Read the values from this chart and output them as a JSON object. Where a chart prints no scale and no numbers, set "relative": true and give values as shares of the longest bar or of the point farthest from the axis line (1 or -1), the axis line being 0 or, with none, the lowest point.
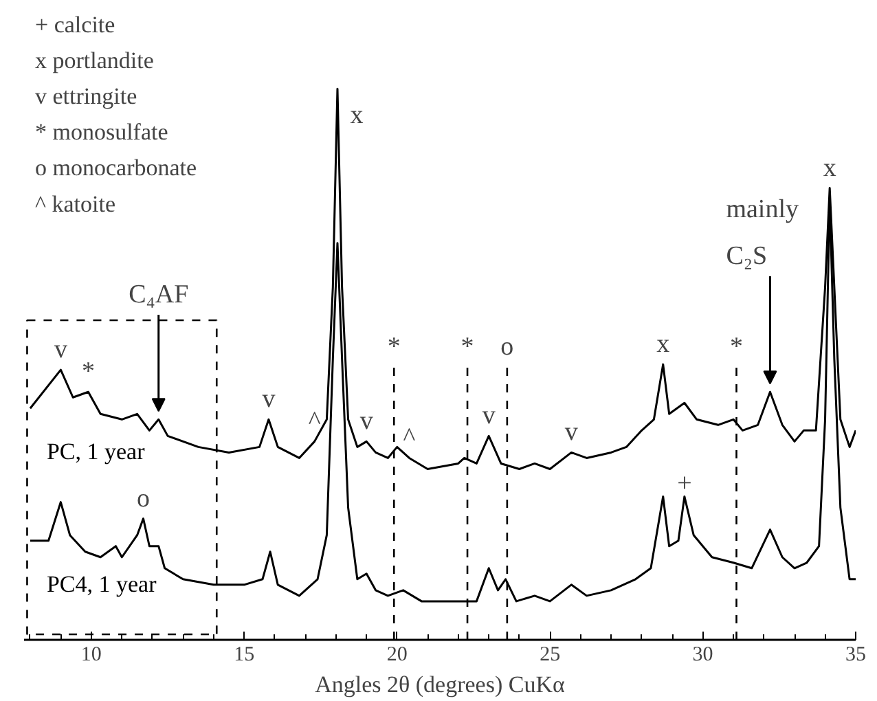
{
  "chart_data": {
    "type": "line",
    "relative": true,
    "xlabel": "Angles 2θ (degrees) CuKα",
    "xlim": [
      7.8,
      35
    ],
    "xticks": [
      {
        "value": 8,
        "label": null
      },
      {
        "value": 9,
        "label": null
      },
      10,
      {
        "value": 11,
        "label": null
      },
      {
        "value": 12,
        "label": null
      },
      {
        "value": 13,
        "label": null
      },
      {
        "value": 14,
        "label": null
      },
      15,
      {
        "value": 16,
        "label": null
      },
      {
        "value": 17,
        "label": null
      },
      {
        "value": 18,
        "label": null
      },
      {
        "value": 19,
        "label": null
      },
      20,
      {
        "value": 21,
        "label": null
      },
      {
        "value": 22,
        "label": null
      },
      {
        "value": 23,
        "label": null
      },
      {
        "value": 24,
        "label": null
      },
      25,
      {
        "value": 26,
        "label": null
      },
      {
        "value": 27,
        "label": null
      },
      {
        "value": 28,
        "label": null
      },
      {
        "value": 29,
        "label": null
      },
      30,
      {
        "value": 31,
        "label": null
      },
      {
        "value": 32,
        "label": null
      },
      {
        "value": 33,
        "label": null
      },
      {
        "value": 34,
        "label": null
      },
      35
    ],
    "grid": false,
    "line_style": "solid",
    "series": [
      {
        "name": "PC, 1 year",
        "color": "#000000",
        "x": [
          8,
          9.0,
          9.4,
          9.9,
          10.3,
          11,
          11.5,
          11.9,
          12.2,
          12.5,
          13.5,
          14.5,
          15.5,
          15.8,
          16.1,
          16.8,
          17.3,
          17.7,
          17.9,
          18.05,
          18.2,
          18.4,
          18.7,
          19.0,
          19.3,
          19.7,
          20.0,
          20.4,
          21,
          22,
          22.2,
          22.6,
          23.0,
          23.4,
          24,
          24.5,
          25,
          25.7,
          26.2,
          27,
          27.5,
          28.0,
          28.4,
          28.7,
          28.9,
          29.4,
          29.8,
          30.5,
          31.0,
          31.3,
          31.8,
          32.2,
          32.6,
          33.0,
          33.3,
          33.7,
          34.0,
          34.15,
          34.3,
          34.5,
          34.8,
          35.0
        ],
        "values": [
          0.42,
          0.49,
          0.44,
          0.45,
          0.41,
          0.4,
          0.41,
          0.38,
          0.4,
          0.37,
          0.35,
          0.34,
          0.35,
          0.4,
          0.35,
          0.33,
          0.36,
          0.4,
          0.64,
          1.0,
          0.64,
          0.4,
          0.35,
          0.36,
          0.34,
          0.33,
          0.35,
          0.33,
          0.31,
          0.32,
          0.33,
          0.32,
          0.37,
          0.32,
          0.31,
          0.32,
          0.31,
          0.34,
          0.33,
          0.34,
          0.35,
          0.38,
          0.4,
          0.5,
          0.41,
          0.43,
          0.4,
          0.39,
          0.4,
          0.38,
          0.39,
          0.45,
          0.39,
          0.36,
          0.38,
          0.38,
          0.64,
          0.82,
          0.64,
          0.4,
          0.35,
          0.38
        ]
      },
      {
        "name": "PC4, 1 year",
        "color": "#000000",
        "x": [
          8,
          8.6,
          9.0,
          9.3,
          9.8,
          10.3,
          10.8,
          11.0,
          11.5,
          11.7,
          11.9,
          12.2,
          12.4,
          13,
          14,
          15,
          15.6,
          15.85,
          16.1,
          16.8,
          17.4,
          17.7,
          17.9,
          18.05,
          18.2,
          18.4,
          18.7,
          19.0,
          19.3,
          19.7,
          20.2,
          20.8,
          22,
          22.6,
          23.0,
          23.3,
          23.55,
          23.9,
          24.5,
          25,
          25.7,
          26.2,
          27,
          27.8,
          28.3,
          28.7,
          28.9,
          29.2,
          29.4,
          29.7,
          30.3,
          31,
          31.6,
          32.2,
          32.6,
          33,
          33.4,
          33.8,
          34.0,
          34.15,
          34.3,
          34.5,
          34.8,
          35.0
        ],
        "values": [
          0.18,
          0.18,
          0.25,
          0.19,
          0.16,
          0.15,
          0.17,
          0.15,
          0.19,
          0.22,
          0.17,
          0.17,
          0.13,
          0.11,
          0.1,
          0.1,
          0.11,
          0.16,
          0.1,
          0.08,
          0.11,
          0.19,
          0.51,
          0.72,
          0.51,
          0.24,
          0.11,
          0.12,
          0.09,
          0.08,
          0.09,
          0.07,
          0.07,
          0.07,
          0.13,
          0.09,
          0.11,
          0.07,
          0.08,
          0.07,
          0.1,
          0.08,
          0.09,
          0.11,
          0.13,
          0.26,
          0.17,
          0.18,
          0.26,
          0.19,
          0.15,
          0.14,
          0.13,
          0.2,
          0.15,
          0.13,
          0.14,
          0.17,
          0.4,
          0.8,
          0.51,
          0.24,
          0.11,
          0.11
        ]
      }
    ],
    "ref_lines": [
      {
        "axis": "x",
        "value": 19.9,
        "label": "*",
        "line_style": "dashed"
      },
      {
        "axis": "x",
        "value": 22.3,
        "label": "*",
        "line_style": "dashed"
      },
      {
        "axis": "x",
        "value": 23.6,
        "label": "o",
        "line_style": "dashed"
      },
      {
        "axis": "x",
        "value": 31.1,
        "label": "*",
        "line_style": "dashed"
      }
    ],
    "bands": [
      {
        "axis": "x",
        "from": 7.9,
        "to": 14.1
      }
    ],
    "annotations": [
      "+ calcite",
      "x portlandite",
      "v ettringite",
      "* monosulfate",
      "o monocarbonate",
      "^ katoite",
      {
        "text": "v",
        "x": 9.0,
        "y": 0.49
      },
      {
        "text": "*",
        "x": 9.9,
        "y": 0.45
      },
      {
        "text": "v",
        "x": 15.8,
        "y": 0.4
      },
      {
        "text": "^",
        "x": 17.3,
        "y": 0.36
      },
      {
        "text": "v",
        "x": 19.0,
        "y": 0.36
      },
      {
        "text": "^",
        "x": 20.4,
        "y": 0.33
      },
      {
        "text": "v",
        "x": 23.0,
        "y": 0.37
      },
      {
        "text": "v",
        "x": 25.7,
        "y": 0.34
      },
      {
        "text": "x",
        "x": 28.7,
        "y": 0.5
      },
      {
        "text": "x",
        "x": 18.05,
        "y": 1.0
      },
      {
        "text": "x",
        "x": 34.15,
        "y": 0.82
      },
      {
        "text": "o",
        "x": 11.7,
        "y": 0.22
      },
      {
        "text": "+",
        "x": 29.4,
        "y": 0.26
      },
      {
        "text": "C₄AF",
        "x": 12.2,
        "y": 0.4
      },
      {
        "text": "mainly C₂S",
        "x": 32.2,
        "y": 0.45
      }
    ]
  }
}
